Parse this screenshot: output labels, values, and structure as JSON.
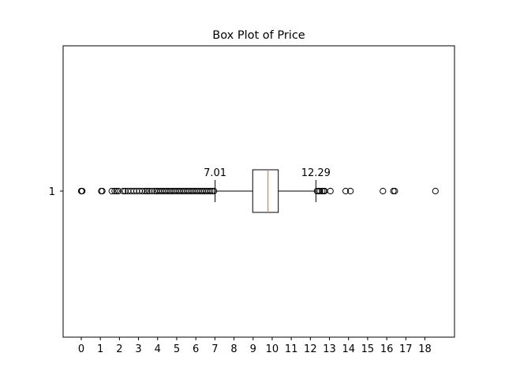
{
  "chart_data": {
    "type": "boxplot",
    "title": "Box Plot of Price",
    "xlabel": "",
    "ylabel": "",
    "xlim": [
      -0.95,
      19.55
    ],
    "xticks": [
      0,
      1,
      2,
      3,
      4,
      5,
      6,
      7,
      8,
      9,
      10,
      11,
      12,
      13,
      14,
      15,
      16,
      17,
      18
    ],
    "grid": false,
    "orientation": "horizontal",
    "box": {
      "category": "1",
      "whisker_low": 7.01,
      "q1": 8.98,
      "median": 9.78,
      "q3": 10.32,
      "whisker_high": 12.29
    },
    "annotations": [
      {
        "text": "7.01",
        "x": 7.01
      },
      {
        "text": "12.29",
        "x": 12.29
      }
    ],
    "outliers_low": [
      0,
      0.02,
      0.05,
      1.05,
      1.1,
      1.6,
      1.75,
      1.85,
      1.95,
      2.2,
      2.3,
      2.45,
      2.6,
      2.75,
      2.9,
      3.05,
      3.2,
      3.35,
      3.45,
      3.55,
      3.7,
      3.85,
      3.95,
      4.05,
      4.15,
      4.25,
      4.35,
      4.45,
      4.55,
      4.65,
      4.75,
      4.85,
      4.95,
      5.05,
      5.15,
      5.25,
      5.35,
      5.45,
      5.55,
      5.65,
      5.75,
      5.85,
      5.95,
      6.05,
      6.15,
      6.25,
      6.35,
      6.45,
      6.55,
      6.65,
      6.75,
      6.85,
      6.95
    ],
    "outliers_high": [
      12.35,
      12.42,
      12.5,
      12.62,
      12.7,
      12.75,
      13.05,
      13.85,
      14.1,
      15.8,
      16.35,
      16.42,
      18.55
    ],
    "colors": {
      "box": "#000000",
      "median": "#ff7f0e",
      "outlier": "#000000"
    }
  }
}
